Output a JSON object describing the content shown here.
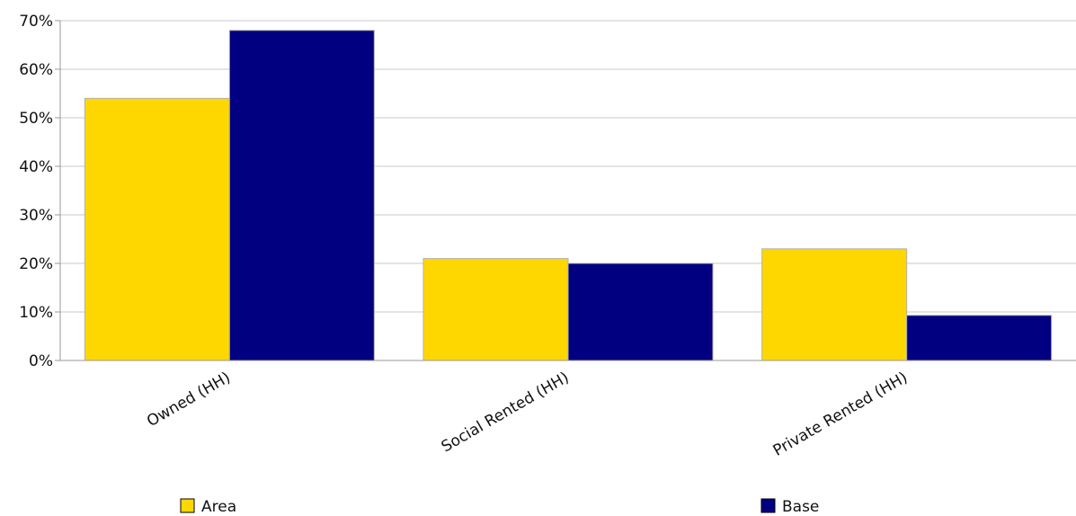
{
  "chart_data": {
    "type": "bar",
    "categories": [
      "Owned (HH)",
      "Social Rented (HH)",
      "Private Rented (HH)"
    ],
    "series": [
      {
        "name": "Area",
        "color": "#FFD700",
        "values": [
          54,
          21,
          23
        ]
      },
      {
        "name": "Base",
        "color": "#000080",
        "values": [
          68,
          20,
          9.3
        ]
      }
    ],
    "y_ticks": [
      "0%",
      "10%",
      "20%",
      "30%",
      "40%",
      "50%",
      "60%",
      "70%"
    ],
    "ylim": [
      0,
      70
    ],
    "grid": true,
    "legend_position": "bottom"
  }
}
